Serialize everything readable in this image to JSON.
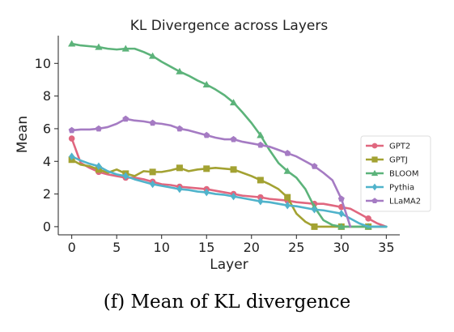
{
  "caption": "(f) Mean of KL divergence",
  "chart_data": {
    "type": "line",
    "title": "KL Divergence across Layers",
    "xlabel": "Layer",
    "ylabel": "Mean",
    "xlim": [
      -1.5,
      36.5
    ],
    "ylim": [
      -0.5,
      11.7
    ],
    "xticks": [
      0,
      5,
      10,
      15,
      20,
      25,
      30,
      35
    ],
    "yticks": [
      0,
      2,
      4,
      6,
      8,
      10
    ],
    "grid": false,
    "legend_position": "right",
    "series": [
      {
        "name": "GPT2",
        "color": "#e0677f",
        "marker": "circle",
        "x": [
          0,
          1,
          2,
          3,
          4,
          5,
          6,
          7,
          8,
          9,
          10,
          11,
          12,
          13,
          14,
          15,
          16,
          17,
          18,
          19,
          20,
          21,
          22,
          23,
          24,
          25,
          26,
          27,
          28,
          29,
          30,
          31,
          32,
          33,
          34,
          35
        ],
        "y": [
          5.4,
          3.9,
          3.6,
          3.35,
          3.2,
          3.1,
          3.0,
          3.0,
          2.9,
          2.75,
          2.6,
          2.55,
          2.45,
          2.4,
          2.35,
          2.3,
          2.2,
          2.1,
          2.0,
          1.9,
          1.85,
          1.8,
          1.7,
          1.65,
          1.6,
          1.5,
          1.45,
          1.4,
          1.4,
          1.3,
          1.2,
          1.1,
          0.8,
          0.5,
          0.2,
          0.0
        ],
        "marker_x": [
          0,
          3,
          6,
          9,
          12,
          15,
          18,
          21,
          24,
          27,
          30,
          33
        ]
      },
      {
        "name": "GPTJ",
        "color": "#a3a232",
        "marker": "square",
        "x": [
          0,
          1,
          2,
          3,
          4,
          5,
          6,
          7,
          8,
          9,
          10,
          11,
          12,
          13,
          14,
          15,
          16,
          17,
          18,
          19,
          20,
          21,
          22,
          23,
          24,
          25,
          26,
          27,
          28,
          29,
          30,
          31,
          32,
          33,
          34,
          35
        ],
        "y": [
          4.1,
          3.8,
          3.7,
          3.5,
          3.3,
          3.5,
          3.25,
          3.1,
          3.4,
          3.35,
          3.35,
          3.45,
          3.6,
          3.4,
          3.5,
          3.55,
          3.6,
          3.55,
          3.5,
          3.3,
          3.1,
          2.85,
          2.6,
          2.3,
          1.8,
          0.8,
          0.3,
          0.0,
          0.0,
          0.0,
          0.0,
          0.0,
          0.0,
          0.0,
          0.0,
          0.0
        ],
        "marker_x": [
          0,
          3,
          6,
          9,
          12,
          15,
          18,
          21,
          24,
          27,
          30,
          33
        ]
      },
      {
        "name": "BLOOM",
        "color": "#5cb37a",
        "marker": "triangle",
        "x": [
          0,
          1,
          2,
          3,
          4,
          5,
          6,
          7,
          8,
          9,
          10,
          11,
          12,
          13,
          14,
          15,
          16,
          17,
          18,
          19,
          20,
          21,
          22,
          23,
          24,
          25,
          26,
          27,
          28,
          29,
          30,
          31,
          32,
          33,
          34,
          35
        ],
        "y": [
          11.2,
          11.1,
          11.05,
          11.0,
          10.9,
          10.85,
          10.9,
          10.9,
          10.7,
          10.45,
          10.1,
          9.8,
          9.5,
          9.25,
          8.95,
          8.7,
          8.4,
          8.05,
          7.6,
          7.0,
          6.35,
          5.6,
          4.7,
          3.9,
          3.4,
          3.0,
          2.3,
          1.2,
          0.4,
          0.1,
          0.0,
          0.0,
          0.0,
          0.0,
          0.0,
          0.0
        ],
        "marker_x": [
          0,
          3,
          6,
          9,
          12,
          15,
          18,
          21,
          24,
          27,
          30,
          33
        ]
      },
      {
        "name": "Pythia",
        "color": "#50b3cb",
        "marker": "diamond",
        "x": [
          0,
          1,
          2,
          3,
          4,
          5,
          6,
          7,
          8,
          9,
          10,
          11,
          12,
          13,
          14,
          15,
          16,
          17,
          18,
          19,
          20,
          21,
          22,
          23,
          24,
          25,
          26,
          27,
          28,
          29,
          30,
          31,
          32,
          33,
          34,
          35
        ],
        "y": [
          4.3,
          4.05,
          3.85,
          3.7,
          3.4,
          3.2,
          3.1,
          2.9,
          2.75,
          2.6,
          2.5,
          2.4,
          2.3,
          2.25,
          2.15,
          2.1,
          2.0,
          1.95,
          1.85,
          1.75,
          1.65,
          1.55,
          1.5,
          1.4,
          1.3,
          1.25,
          1.15,
          1.05,
          1.0,
          0.9,
          0.8,
          0.5,
          0.2,
          0.0,
          0.0,
          0.0
        ],
        "marker_x": [
          0,
          3,
          6,
          9,
          12,
          15,
          18,
          21,
          24,
          27,
          30
        ]
      },
      {
        "name": "LLaMA2",
        "color": "#a57bc3",
        "marker": "pentagon",
        "x": [
          0,
          1,
          2,
          3,
          4,
          5,
          6,
          7,
          8,
          9,
          10,
          11,
          12,
          13,
          14,
          15,
          16,
          17,
          18,
          19,
          20,
          21,
          22,
          23,
          24,
          25,
          26,
          27,
          28,
          29,
          30,
          31
        ],
        "y": [
          5.9,
          5.95,
          5.95,
          6.0,
          6.1,
          6.3,
          6.6,
          6.5,
          6.45,
          6.35,
          6.3,
          6.2,
          6.0,
          5.9,
          5.75,
          5.6,
          5.45,
          5.35,
          5.35,
          5.2,
          5.1,
          5.0,
          4.9,
          4.7,
          4.5,
          4.3,
          4.0,
          3.7,
          3.3,
          2.85,
          1.7,
          0.0
        ],
        "marker_x": [
          0,
          3,
          6,
          9,
          12,
          15,
          18,
          21,
          24,
          27,
          30
        ]
      }
    ]
  }
}
